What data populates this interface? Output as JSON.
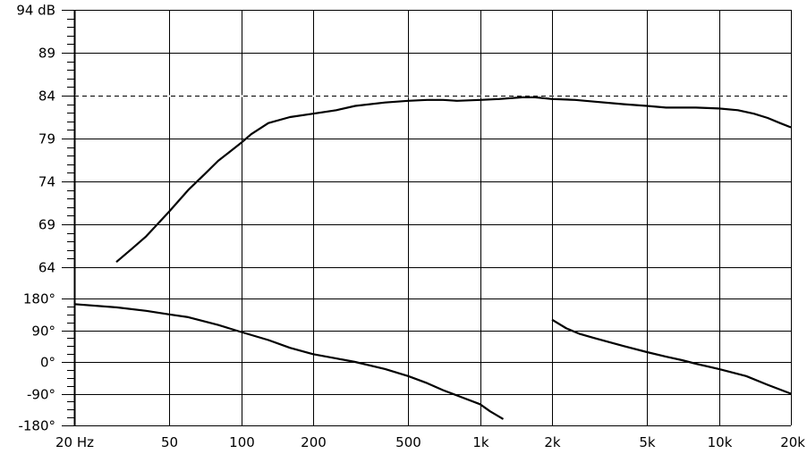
{
  "chart_data": [
    {
      "type": "line",
      "title": "",
      "xlabel": "",
      "ylabel": "",
      "x_scale": "log",
      "xlim": [
        20,
        20000
      ],
      "ylim": [
        64,
        94
      ],
      "x_ticks": [
        {
          "value": 20,
          "label": "20 Hz"
        },
        {
          "value": 50,
          "label": "50"
        },
        {
          "value": 100,
          "label": "100"
        },
        {
          "value": 200,
          "label": "200"
        },
        {
          "value": 500,
          "label": "500"
        },
        {
          "value": 1000,
          "label": "1k"
        },
        {
          "value": 2000,
          "label": "2k"
        },
        {
          "value": 5000,
          "label": "5k"
        },
        {
          "value": 10000,
          "label": "10k"
        },
        {
          "value": 20000,
          "label": "20k"
        }
      ],
      "y_ticks": [
        {
          "value": 94,
          "label": "94 dB"
        },
        {
          "value": 89,
          "label": "89"
        },
        {
          "value": 84,
          "label": "84"
        },
        {
          "value": 79,
          "label": "79"
        },
        {
          "value": 74,
          "label": "74"
        },
        {
          "value": 69,
          "label": "69"
        },
        {
          "value": 64,
          "label": "64"
        }
      ],
      "grid": true,
      "reference_line": {
        "y": 84,
        "style": "dashed"
      },
      "series": [
        {
          "x": [
            30,
            35,
            40,
            50,
            60,
            70,
            80,
            90,
            100,
            110,
            130,
            160,
            200,
            250,
            300,
            400,
            500,
            600,
            700,
            800,
            1000,
            1200,
            1500,
            1700,
            2000,
            2500,
            3000,
            4000,
            5000,
            6000,
            7000,
            8000,
            10000,
            12000,
            14000,
            16000,
            18000,
            20000
          ],
          "y": [
            64.6,
            66.2,
            67.6,
            70.5,
            73.0,
            74.8,
            76.4,
            77.5,
            78.5,
            79.5,
            80.8,
            81.5,
            81.9,
            82.3,
            82.8,
            83.2,
            83.4,
            83.5,
            83.5,
            83.4,
            83.5,
            83.6,
            83.8,
            83.8,
            83.6,
            83.5,
            83.3,
            83.0,
            82.8,
            82.6,
            82.6,
            82.6,
            82.5,
            82.3,
            81.9,
            81.4,
            80.8,
            80.3
          ],
          "color": "#000000"
        }
      ]
    },
    {
      "type": "line",
      "title": "",
      "xlabel": "",
      "ylabel": "",
      "x_scale": "log",
      "xlim": [
        20,
        20000
      ],
      "ylim": [
        -180,
        180
      ],
      "y_ticks": [
        {
          "value": 180,
          "label": "180°"
        },
        {
          "value": 90,
          "label": "90°"
        },
        {
          "value": 0,
          "label": "0°"
        },
        {
          "value": -90,
          "label": "-90°"
        },
        {
          "value": -180,
          "label": "-180°"
        }
      ],
      "grid": true,
      "series": [
        {
          "x": [
            20,
            30,
            40,
            50,
            60,
            70,
            80,
            100,
            130,
            160,
            200,
            250,
            300,
            400,
            500,
            600,
            700,
            800,
            1000,
            1100,
            1250
          ],
          "y": [
            164,
            155,
            145,
            135,
            127,
            115,
            105,
            85,
            62,
            40,
            22,
            10,
            0,
            -20,
            -40,
            -60,
            -80,
            -95,
            -120,
            -140,
            -162
          ],
          "color": "#000000"
        },
        {
          "x": [
            2000,
            2300,
            2600,
            3000,
            4000,
            5000,
            6000,
            7000,
            8000,
            10000,
            13000,
            16000,
            20000
          ],
          "y": [
            120,
            95,
            80,
            68,
            45,
            28,
            15,
            5,
            -5,
            -20,
            -40,
            -65,
            -90
          ],
          "color": "#000000"
        }
      ]
    }
  ]
}
